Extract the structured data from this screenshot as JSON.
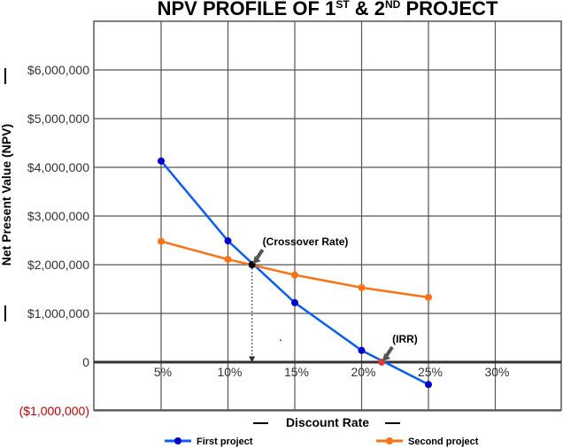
{
  "chart_data": {
    "type": "line",
    "title": {
      "prefix": "NPV PROFILE OF 1",
      "sup1": "ST",
      "middle": " & 2",
      "sup2": "ND",
      "suffix": " PROJECT"
    },
    "xlabel": "Discount Rate",
    "ylabel": "Net Present Value (NPV)",
    "x_ticks": [
      "5%",
      "10%",
      "15%",
      "20%",
      "25%",
      "30%"
    ],
    "y_ticks": [
      "$6,000,000",
      "$5,000,000",
      "$4,000,000",
      "$3,000,000",
      "$2,000,000",
      "$1,000,000",
      "0",
      "($1,000,000)"
    ],
    "ylim": [
      -1000000,
      7000000
    ],
    "xlim": [
      0,
      35
    ],
    "grid": true,
    "series": [
      {
        "name": "First project",
        "color": "#0a5cf5",
        "marker_color": "#0000cc",
        "x": [
          5,
          10,
          15,
          20,
          25
        ],
        "y": [
          4130000,
          2490000,
          1220000,
          240000,
          -460000
        ]
      },
      {
        "name": "Second project",
        "color": "#f97316",
        "marker_color": "#f97316",
        "x": [
          5,
          10,
          15,
          20,
          25
        ],
        "y": [
          2480000,
          2110000,
          1790000,
          1530000,
          1330000
        ]
      }
    ],
    "annotations": [
      {
        "text": "(Crossover Rate)",
        "x": 11.8,
        "y": 2000000,
        "marker_color": "#000000"
      },
      {
        "text": "(IRR)",
        "x": 21.5,
        "y": 0,
        "marker_color": "#e53935"
      }
    ],
    "legend_position": "bottom"
  }
}
